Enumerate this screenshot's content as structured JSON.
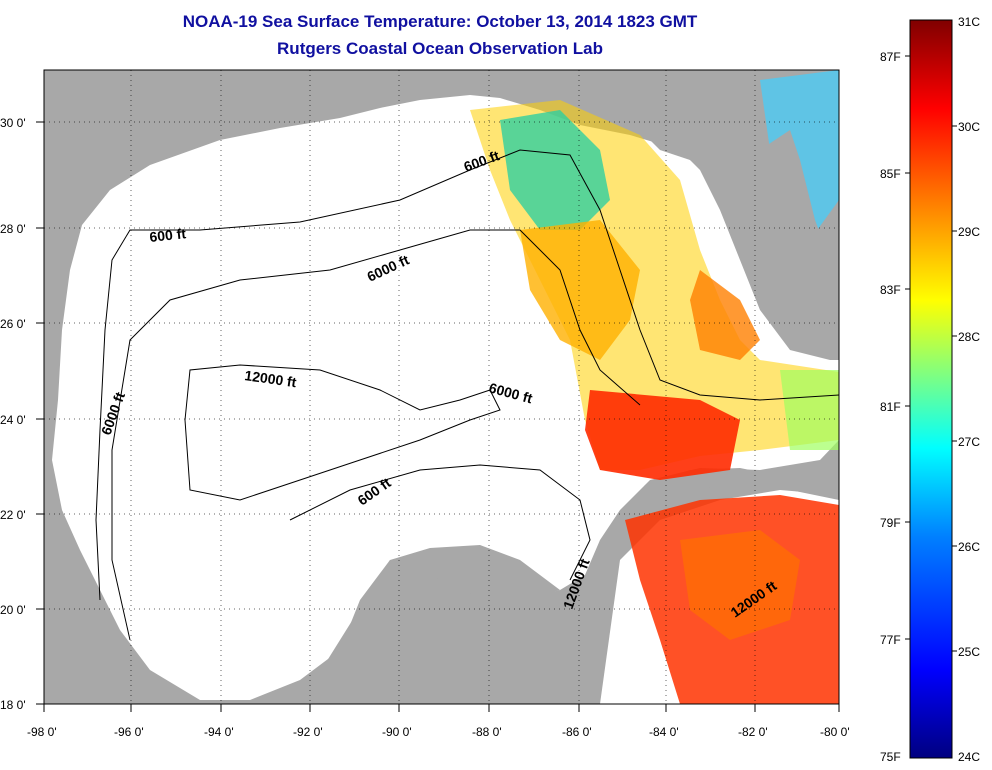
{
  "title": {
    "line1": "NOAA-19 Sea Surface Temperature:  October 13, 2014 1823 GMT",
    "line2": "Rutgers Coastal Ocean Observation Lab"
  },
  "map": {
    "lon_range": [
      -98,
      -80
    ],
    "lat_range": [
      18,
      31
    ],
    "lon_ticks": [
      "-98 0'",
      "-96 0'",
      "-94 0'",
      "-92 0'",
      "-90 0'",
      "-88 0'",
      "-86 0'",
      "-84 0'",
      "-82 0'",
      "-80 0'"
    ],
    "lat_ticks": [
      "18 0'",
      "20 0'",
      "22 0'",
      "24 0'",
      "26 0'",
      "28 0'",
      "30 0'"
    ],
    "contour_labels": [
      "600 ft",
      "600 ft",
      "6000 ft",
      "6000 ft",
      "6000 ft",
      "12000 ft",
      "600 ft",
      "12000 ft",
      "12000 ft"
    ],
    "land_color": "#a8a8a8",
    "water_color": "#ffffff"
  },
  "colorbar": {
    "celsius_labels": [
      "31C",
      "30C",
      "29C",
      "28C",
      "27C",
      "26C",
      "25C",
      "24C"
    ],
    "fahrenheit_labels": [
      "87F",
      "85F",
      "83F",
      "81F",
      "79F",
      "77F",
      "75F"
    ],
    "colors": [
      "#000080",
      "#0000ff",
      "#0080ff",
      "#00ffff",
      "#80ff80",
      "#ffff00",
      "#ff8000",
      "#ff0000",
      "#800000"
    ]
  }
}
